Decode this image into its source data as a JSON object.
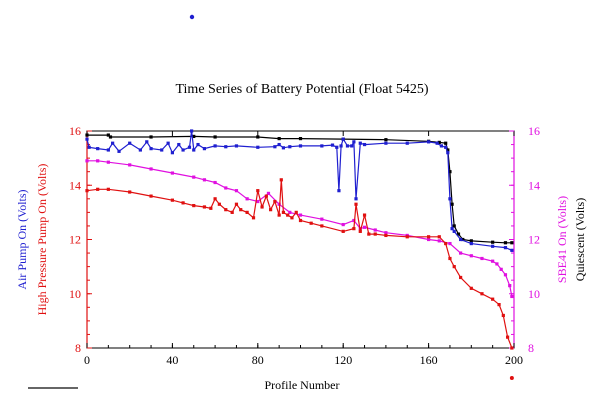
{
  "chart_data": {
    "type": "line",
    "title": "Time Series of Battery Potential (Float 5425)",
    "xlabel": "Profile Number",
    "xlim": [
      0,
      200
    ],
    "xticks": [
      0,
      40,
      80,
      120,
      160,
      200
    ],
    "ylim": [
      8,
      16
    ],
    "yticks": [
      8,
      10,
      12,
      14,
      16
    ],
    "left_axis_labels": [
      {
        "text": "Air Pump On (Volts)",
        "color": "#1f1fd0"
      },
      {
        "text": "High Pressure Pump On (Volts)",
        "color": "#e01010"
      }
    ],
    "right_axis_labels": [
      {
        "text": "SBE41 On (Volts)",
        "color": "#e010e0"
      },
      {
        "text": "Quiescent (Volts)",
        "color": "#000000"
      }
    ],
    "left_tick_color": "#e01010",
    "right_tick_color": "#e010e0",
    "series": [
      {
        "color": "#000000",
        "x": [
          0,
          10,
          11,
          30,
          50,
          60,
          80,
          90,
          100,
          120,
          140,
          160,
          165,
          168,
          169,
          170,
          171,
          172,
          174,
          176,
          180,
          190,
          196,
          199
        ],
        "y": [
          15.85,
          15.85,
          15.78,
          15.78,
          15.8,
          15.78,
          15.78,
          15.72,
          15.72,
          15.7,
          15.68,
          15.62,
          15.58,
          15.55,
          15.3,
          14.5,
          13.3,
          12.5,
          12.2,
          12.0,
          11.95,
          11.9,
          11.88,
          11.88
        ]
      },
      {
        "color": "#1f1fd0",
        "x": [
          0,
          1,
          5,
          10,
          12,
          15,
          20,
          25,
          28,
          30,
          35,
          38,
          40,
          43,
          45,
          48,
          49,
          50,
          52,
          55,
          60,
          65,
          70,
          80,
          88,
          90,
          92,
          95,
          100,
          110,
          115,
          117,
          118,
          119,
          120,
          122,
          124,
          125,
          126,
          128,
          130,
          140,
          150,
          160,
          164,
          166,
          168,
          169,
          170,
          171,
          172,
          175,
          180,
          190,
          196,
          199
        ],
        "y": [
          15.7,
          15.4,
          15.35,
          15.3,
          15.55,
          15.25,
          15.55,
          15.3,
          15.6,
          15.35,
          15.3,
          15.55,
          15.2,
          15.5,
          15.3,
          15.4,
          16.0,
          15.3,
          15.5,
          15.35,
          15.45,
          15.42,
          15.45,
          15.4,
          15.42,
          15.5,
          15.38,
          15.42,
          15.45,
          15.45,
          15.48,
          15.4,
          13.8,
          15.45,
          15.7,
          15.45,
          15.45,
          15.6,
          13.5,
          15.55,
          15.5,
          15.55,
          15.55,
          15.6,
          15.55,
          15.45,
          15.4,
          15.2,
          13.5,
          12.4,
          12.3,
          12.0,
          11.85,
          11.75,
          11.7,
          11.6
        ]
      },
      {
        "color": "#e010e0",
        "x": [
          0,
          5,
          10,
          20,
          30,
          40,
          50,
          55,
          60,
          65,
          70,
          75,
          80,
          85,
          90,
          95,
          100,
          110,
          120,
          125,
          128,
          130,
          135,
          140,
          150,
          160,
          165,
          170,
          175,
          180,
          185,
          190,
          192,
          194,
          196,
          198,
          199
        ],
        "y": [
          14.9,
          14.9,
          14.85,
          14.75,
          14.6,
          14.45,
          14.3,
          14.2,
          14.1,
          13.9,
          13.8,
          13.5,
          13.4,
          13.7,
          13.3,
          13.0,
          12.9,
          12.75,
          12.55,
          12.7,
          12.4,
          12.45,
          12.35,
          12.25,
          12.15,
          12.0,
          11.95,
          11.85,
          11.5,
          11.4,
          11.3,
          11.2,
          11.1,
          10.9,
          10.7,
          10.3,
          9.9
        ]
      },
      {
        "color": "#e01010",
        "x": [
          0,
          5,
          10,
          20,
          30,
          40,
          45,
          50,
          55,
          58,
          60,
          62,
          65,
          68,
          70,
          72,
          75,
          78,
          80,
          82,
          84,
          86,
          88,
          90,
          91,
          92,
          94,
          96,
          98,
          100,
          105,
          110,
          120,
          125,
          126,
          128,
          130,
          132,
          135,
          140,
          150,
          160,
          165,
          168,
          170,
          172,
          175,
          180,
          185,
          190,
          193,
          195,
          197,
          199
        ],
        "y": [
          13.8,
          13.85,
          13.85,
          13.75,
          13.6,
          13.45,
          13.35,
          13.25,
          13.2,
          13.15,
          13.5,
          13.3,
          13.1,
          13.0,
          13.3,
          13.1,
          13.0,
          12.8,
          13.8,
          13.2,
          13.6,
          13.1,
          13.4,
          12.9,
          14.2,
          13.0,
          12.9,
          12.8,
          13.0,
          12.7,
          12.6,
          12.5,
          12.3,
          12.4,
          13.3,
          12.3,
          12.9,
          12.2,
          12.2,
          12.15,
          12.1,
          12.1,
          12.1,
          11.85,
          11.3,
          11.0,
          10.6,
          10.2,
          10.0,
          9.8,
          9.6,
          9.2,
          8.4,
          8.0
        ]
      }
    ]
  }
}
